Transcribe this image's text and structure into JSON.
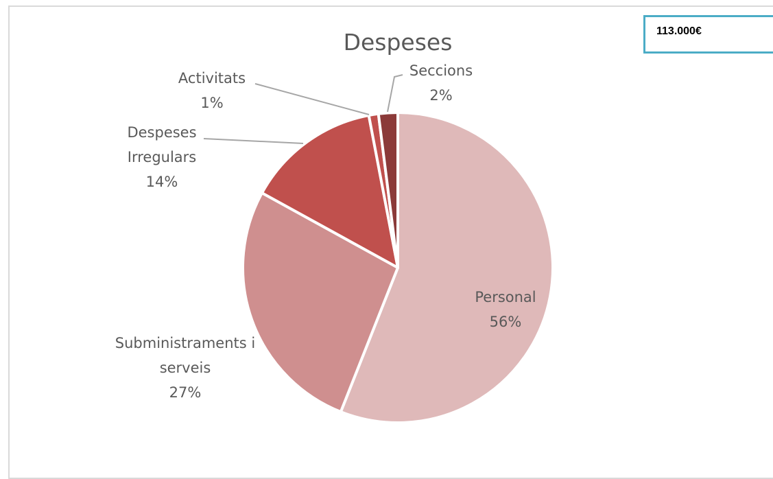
{
  "total_amount": "113.000€",
  "chart_data": {
    "type": "pie",
    "title": "Despeses",
    "slices": [
      {
        "label": "Personal",
        "label_lines": [
          "Personal"
        ],
        "percent_label": "56%",
        "value": 56,
        "color": "#dfb9b9"
      },
      {
        "label": "Subministraments i serveis",
        "label_lines": [
          "Subministraments i",
          "serveis"
        ],
        "percent_label": "27%",
        "value": 27,
        "color": "#cf8f8f"
      },
      {
        "label": "Despeses Irregulars",
        "label_lines": [
          "Despeses",
          "Irregulars"
        ],
        "percent_label": "14%",
        "value": 14,
        "color": "#c0504d"
      },
      {
        "label": "Activitats",
        "label_lines": [
          "Activitats"
        ],
        "percent_label": "1%",
        "value": 1,
        "color": "#c0504d"
      },
      {
        "label": "Seccions",
        "label_lines": [
          "Seccions"
        ],
        "percent_label": "2%",
        "value": 2,
        "color": "#8b3a39"
      }
    ],
    "legend": "none"
  }
}
